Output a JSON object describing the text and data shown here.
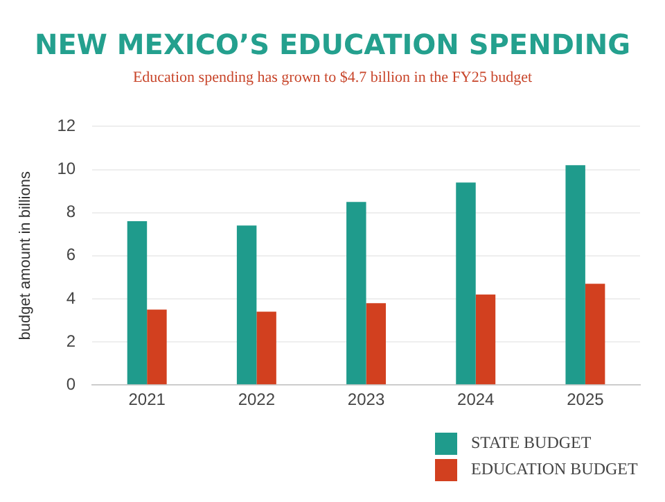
{
  "chart_data": {
    "type": "bar",
    "title": "NEW MEXICO’S EDUCATION SPENDING",
    "subtitle": "Education spending has grown to $4.7 billion in the FY25 budget",
    "ylabel": "budget amount in billions",
    "categories": [
      "2021",
      "2022",
      "2023",
      "2024",
      "2025"
    ],
    "series": [
      {
        "name": "STATE BUDGET",
        "color": "#1f9b8c",
        "values": [
          7.6,
          7.4,
          8.5,
          9.4,
          10.2
        ]
      },
      {
        "name": "EDUCATION BUDGET",
        "color": "#d2401f",
        "values": [
          3.5,
          3.4,
          3.8,
          4.2,
          4.7
        ]
      }
    ],
    "ylim": [
      0,
      12
    ],
    "yticks": [
      0,
      2,
      4,
      6,
      8,
      10,
      12
    ],
    "grid": "y",
    "legend": "bottom right"
  }
}
